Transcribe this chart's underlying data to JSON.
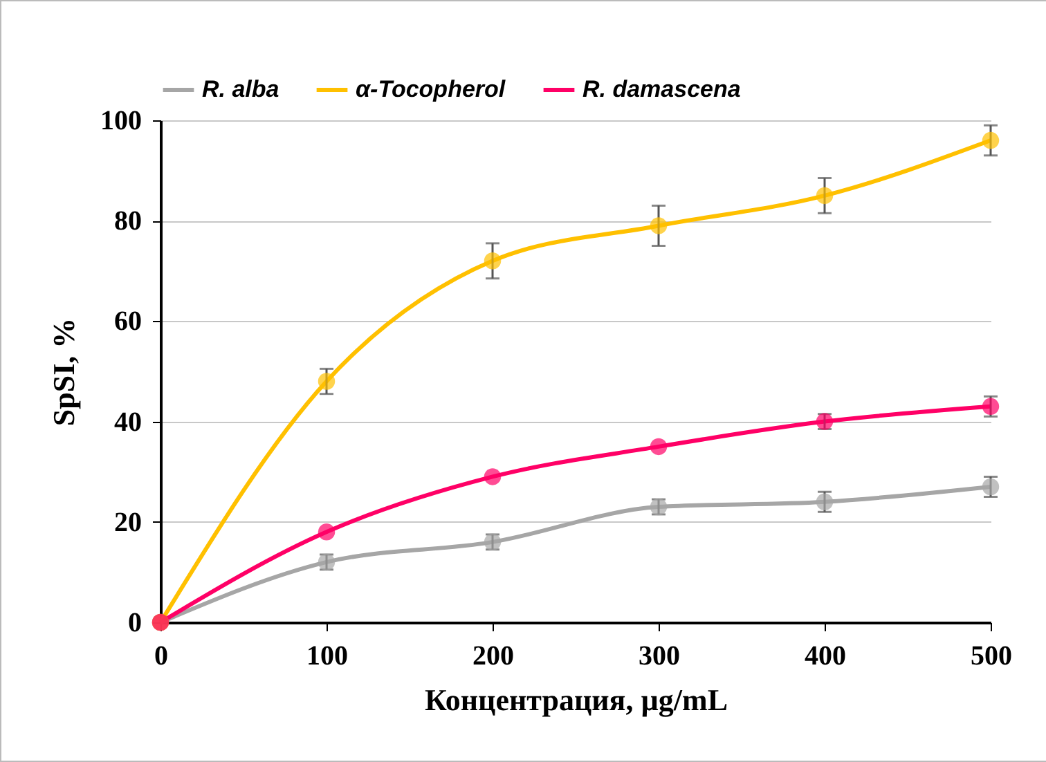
{
  "chart_data": {
    "type": "line",
    "xlabel": "Концентрация, µg/mL",
    "ylabel": "SpSI, %",
    "x": [
      0,
      100,
      200,
      300,
      400,
      500
    ],
    "xlim": [
      0,
      500
    ],
    "xticks": [
      0,
      100,
      200,
      300,
      400,
      500
    ],
    "ylim": [
      0,
      100
    ],
    "yticks": [
      0,
      20,
      40,
      60,
      80,
      100
    ],
    "grid": "y",
    "legend": "top",
    "marker": "circle",
    "line_style": "solid",
    "series": [
      {
        "name": "R. alba",
        "color": "#a6a6a6",
        "values": [
          0,
          12,
          16,
          23,
          24,
          27
        ],
        "errors": [
          null,
          1.5,
          1.5,
          1.5,
          2,
          2
        ]
      },
      {
        "name": "α-Tocopherol",
        "color": "#ffc000",
        "values": [
          0,
          48,
          72,
          79,
          85,
          96
        ],
        "errors": [
          null,
          2.5,
          3.5,
          4,
          3.5,
          3
        ]
      },
      {
        "name": "R. damascena",
        "color": "#ff0066",
        "values": [
          0,
          18,
          29,
          35,
          40,
          43
        ],
        "errors": [
          null,
          null,
          null,
          null,
          1.5,
          2
        ]
      }
    ]
  }
}
